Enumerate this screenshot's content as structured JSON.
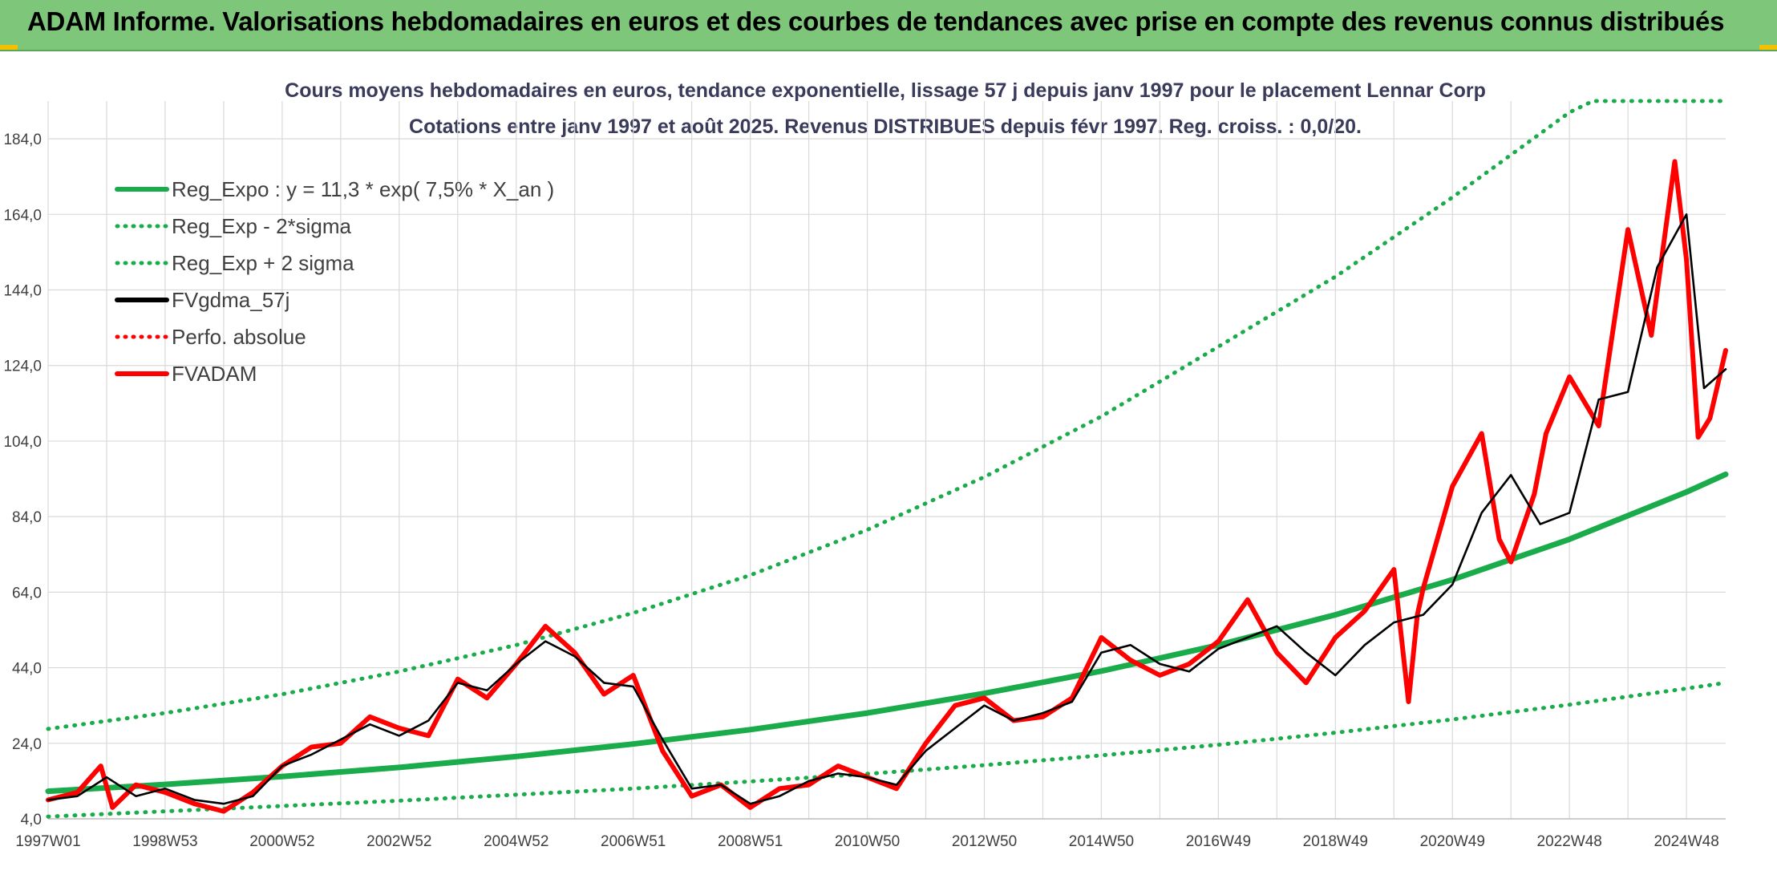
{
  "header": {
    "title": "ADAM Informe. Valorisations hebdomadaires en euros et des courbes de tendances avec prise en compte des revenus connus distribués"
  },
  "colors": {
    "header_bg": "#7dc67a",
    "trend_green": "#1aab4b",
    "fvgdma_black": "#000000",
    "fvadam_red": "#ff0000",
    "grid": "#d9d9d9"
  },
  "chart_data": {
    "type": "line",
    "title": "Cours moyens hebdomadaires en euros, tendance exponentielle, lissage 57 j depuis janv 1997 pour le placement Lennar Corp",
    "subtitle": "Cotations entre janv 1997 et août 2025. Revenus DISTRIBUES depuis févr 1997. Reg. croiss. : 0,0/20.",
    "ylim": [
      4,
      194
    ],
    "yticks": [
      "4,0",
      "24,0",
      "44,0",
      "64,0",
      "84,0",
      "104,0",
      "124,0",
      "144,0",
      "164,0",
      "184,0"
    ],
    "ytick_values": [
      4,
      24,
      44,
      64,
      84,
      104,
      124,
      144,
      164,
      184
    ],
    "xlim": [
      1997.0,
      2025.67
    ],
    "xticks": [
      "1997W01",
      "1998W53",
      "2000W52",
      "2002W52",
      "2004W52",
      "2006W51",
      "2008W51",
      "2010W50",
      "2012W50",
      "2014W50",
      "2016W49",
      "2018W49",
      "2020W49",
      "2022W48",
      "2024W48"
    ],
    "xtick_values": [
      1997.0,
      1999.0,
      2001.0,
      2003.0,
      2005.0,
      2007.0,
      2009.0,
      2011.0,
      2013.0,
      2015.0,
      2017.0,
      2019.0,
      2021.0,
      2023.0,
      2025.0
    ],
    "grid": true,
    "legend_position": "top-left",
    "legend": [
      {
        "label": "Reg_Expo : y = 11,3 * exp( 7,5% *  X_an )",
        "color": "#1aab4b",
        "style": "solid"
      },
      {
        "label": "Reg_Exp - 2*sigma",
        "color": "#1aab4b",
        "style": "dotted"
      },
      {
        "label": "Reg_Exp + 2 sigma",
        "color": "#1aab4b",
        "style": "dotted"
      },
      {
        "label": "FVgdma_57j",
        "color": "#000000",
        "style": "solid"
      },
      {
        "label": "Perfo. absolue",
        "color": "#ff0000",
        "style": "dotted"
      },
      {
        "label": "FVADAM",
        "color": "#ff0000",
        "style": "solid"
      }
    ],
    "series": [
      {
        "name": "Reg_Expo : y = 11,3 * exp( 7,5% *  X_an )",
        "x": [
          1997,
          1999,
          2001,
          2003,
          2005,
          2007,
          2009,
          2011,
          2013,
          2015,
          2017,
          2019,
          2021,
          2023,
          2025,
          2025.67
        ],
        "values": [
          11.3,
          13.1,
          15.2,
          17.6,
          20.5,
          23.8,
          27.6,
          32.0,
          37.2,
          43.1,
          50.0,
          58.0,
          67.3,
          78.0,
          90.5,
          95.2
        ]
      },
      {
        "name": "Reg_Exp - 2*sigma",
        "x": [
          1997,
          1999,
          2001,
          2003,
          2005,
          2007,
          2009,
          2011,
          2013,
          2015,
          2017,
          2019,
          2021,
          2023,
          2025,
          2025.67
        ],
        "values": [
          4.6,
          6.0,
          7.4,
          8.8,
          10.4,
          12.0,
          13.9,
          15.9,
          18.2,
          20.8,
          23.6,
          26.8,
          30.3,
          34.2,
          38.5,
          40.0
        ]
      },
      {
        "name": "Reg_Exp + 2 sigma",
        "x": [
          1997,
          1999,
          2001,
          2003,
          2005,
          2007,
          2009,
          2011,
          2013,
          2015,
          2017,
          2019,
          2021,
          2023,
          2023.4,
          2025.67
        ],
        "values": [
          27.8,
          32.0,
          37.0,
          43.0,
          50.0,
          58.5,
          68.5,
          80.5,
          94.5,
          110.5,
          129.0,
          147.5,
          168.5,
          191.0,
          194.0,
          194.0
        ]
      },
      {
        "name": "FVgdma_57j",
        "x": [
          1997.0,
          1997.5,
          1998.0,
          1998.5,
          1999.0,
          1999.5,
          2000.0,
          2000.5,
          2001.0,
          2001.5,
          2002.0,
          2002.5,
          2003.0,
          2003.5,
          2004.0,
          2004.5,
          2005.0,
          2005.5,
          2006.0,
          2006.5,
          2007.0,
          2007.5,
          2008.0,
          2008.5,
          2009.0,
          2009.5,
          2010.0,
          2010.5,
          2011.0,
          2011.5,
          2012.0,
          2012.5,
          2013.0,
          2013.5,
          2014.0,
          2014.5,
          2015.0,
          2015.5,
          2016.0,
          2016.5,
          2017.0,
          2017.5,
          2018.0,
          2018.5,
          2019.0,
          2019.5,
          2020.0,
          2020.5,
          2021.0,
          2021.5,
          2022.0,
          2022.5,
          2023.0,
          2023.5,
          2024.0,
          2024.5,
          2025.0,
          2025.3,
          2025.67
        ],
        "values": [
          9.0,
          10.0,
          15.0,
          10.0,
          12.0,
          9.0,
          8.0,
          10.0,
          18.0,
          21.0,
          25.0,
          29.0,
          26.0,
          30.0,
          40.0,
          38.0,
          45.0,
          51.0,
          47.0,
          40.0,
          39.0,
          25.0,
          12.0,
          13.0,
          8.0,
          10.0,
          14.0,
          16.0,
          15.0,
          13.0,
          22.0,
          28.0,
          34.0,
          30.0,
          32.0,
          35.0,
          48.0,
          50.0,
          45.0,
          43.0,
          49.0,
          52.0,
          55.0,
          48.0,
          42.0,
          50.0,
          56.0,
          58.0,
          66.0,
          85.0,
          95.0,
          82.0,
          85.0,
          115.0,
          117.0,
          150.0,
          164.0,
          118.0,
          123.0
        ]
      },
      {
        "name": "FVADAM",
        "x": [
          1997.0,
          1997.5,
          1997.9,
          1998.1,
          1998.5,
          1999.0,
          1999.5,
          2000.0,
          2000.5,
          2001.0,
          2001.5,
          2002.0,
          2002.5,
          2003.0,
          2003.5,
          2004.0,
          2004.5,
          2005.0,
          2005.5,
          2006.0,
          2006.5,
          2007.0,
          2007.5,
          2008.0,
          2008.5,
          2009.0,
          2009.5,
          2010.0,
          2010.5,
          2011.0,
          2011.5,
          2012.0,
          2012.5,
          2013.0,
          2013.5,
          2014.0,
          2014.5,
          2015.0,
          2015.5,
          2016.0,
          2016.5,
          2017.0,
          2017.5,
          2018.0,
          2018.5,
          2019.0,
          2019.5,
          2020.0,
          2020.25,
          2020.4,
          2020.5,
          2021.0,
          2021.5,
          2021.8,
          2022.0,
          2022.4,
          2022.6,
          2023.0,
          2023.5,
          2024.0,
          2024.4,
          2024.8,
          2025.0,
          2025.2,
          2025.4,
          2025.67
        ],
        "values": [
          9.0,
          11.0,
          18.0,
          7.0,
          13.0,
          11.0,
          8.0,
          6.0,
          11.0,
          18.0,
          23.0,
          24.0,
          31.0,
          28.0,
          26.0,
          41.0,
          36.0,
          45.0,
          55.0,
          48.0,
          37.0,
          42.0,
          22.0,
          10.0,
          13.0,
          7.0,
          12.0,
          13.0,
          18.0,
          15.0,
          12.0,
          24.0,
          34.0,
          36.0,
          30.0,
          31.0,
          36.0,
          52.0,
          46.0,
          42.0,
          45.0,
          51.0,
          62.0,
          48.0,
          40.0,
          52.0,
          59.0,
          70.0,
          35.0,
          58.0,
          65.0,
          92.0,
          106.0,
          78.0,
          72.0,
          90.0,
          106.0,
          121.0,
          108.0,
          160.0,
          132.0,
          178.0,
          152.0,
          105.0,
          110.0,
          128.0
        ]
      }
    ]
  }
}
